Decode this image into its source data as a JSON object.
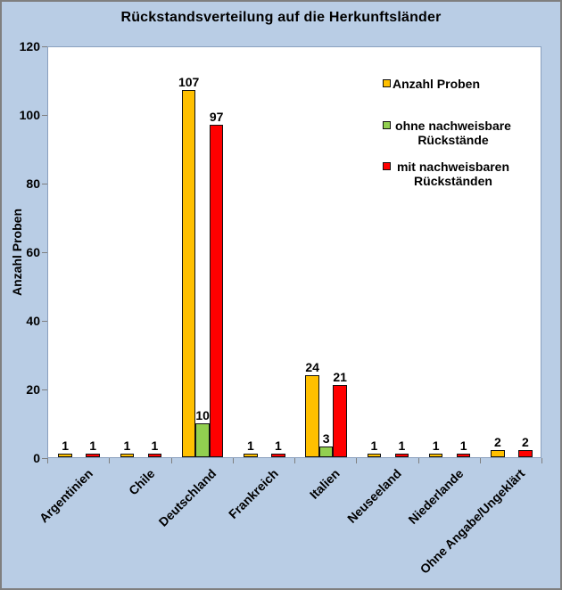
{
  "title": "Rückstandsverteilung auf die Herkunftsländer",
  "chart_data": {
    "type": "bar",
    "title": "Rückstandsverteilung auf die Herkunftsländer",
    "xlabel": "",
    "ylabel": "Anzahl Proben",
    "ylim": [
      0,
      120
    ],
    "ytick_step": 20,
    "grid": false,
    "plot_background": "#FFFFFF",
    "chart_background": "#B9CDE5",
    "legend_position": "inside-top-right",
    "categories": [
      "Argentinien",
      "Chile",
      "Deutschland",
      "Frankreich",
      "Italien",
      "Neuseeland",
      "Niederlande",
      "Ohne Angabe/Ungeklärt"
    ],
    "series": [
      {
        "name": "Anzahl Proben",
        "color": "#FFC000",
        "values": [
          1,
          1,
          107,
          1,
          24,
          1,
          1,
          2
        ]
      },
      {
        "name": "ohne nachweisbare Rückstände",
        "color": "#92D050",
        "values": [
          0,
          0,
          10,
          0,
          3,
          0,
          0,
          0
        ]
      },
      {
        "name": "mit nachweisbaren Rückständen",
        "color": "#FF0000",
        "values": [
          1,
          1,
          97,
          1,
          21,
          1,
          1,
          2
        ]
      }
    ],
    "bar_value_labels_shown": true
  }
}
